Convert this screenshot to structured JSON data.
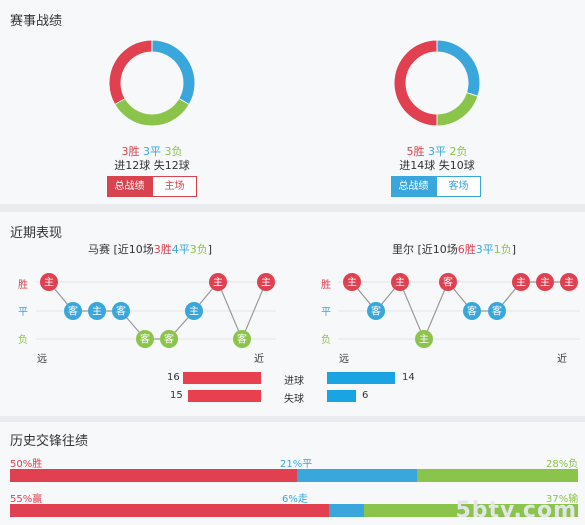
{
  "record": {
    "title": "赛事战绩",
    "left": {
      "win": "3胜",
      "draw": "3平",
      "lose": "3负",
      "goals": "进12球 失12球",
      "btn_all": "总战绩",
      "btn_venue": "主场",
      "share": {
        "win": 3,
        "draw": 3,
        "lose": 3
      }
    },
    "right": {
      "win": "5胜",
      "draw": "3平",
      "lose": "2负",
      "goals": "进14球 失10球",
      "btn_all": "总战绩",
      "btn_venue": "客场",
      "share": {
        "win": 5,
        "draw": 3,
        "lose": 2
      }
    }
  },
  "recent": {
    "title": "近期表现",
    "left": {
      "name": "马赛",
      "open": " [近10场",
      "w": "3胜",
      "d": "4平",
      "l": "3负",
      "close": "]",
      "results": [
        "W",
        "D",
        "D",
        "D",
        "L",
        "L",
        "D",
        "W",
        "L",
        "W"
      ],
      "labels": [
        "主",
        "客",
        "主",
        "客",
        "客",
        "客",
        "主",
        "主",
        "客",
        "主"
      ]
    },
    "right": {
      "name": "里尔",
      "open": " [近10场",
      "w": "6胜",
      "d": "3平",
      "l": "1负",
      "close": "]",
      "results": [
        "W",
        "D",
        "W",
        "L",
        "W",
        "D",
        "D",
        "W",
        "W",
        "W"
      ],
      "labels": [
        "主",
        "客",
        "主",
        "主",
        "客",
        "客",
        "客",
        "主",
        "主",
        "主"
      ]
    },
    "y_win": "胜",
    "y_draw": "平",
    "y_lose": "负",
    "x_far": "远",
    "x_near": "近",
    "stats": {
      "goals_label": "进球",
      "conceded_label": "失球",
      "left_goals": "16",
      "left_conceded": "15",
      "right_goals": "14",
      "right_conceded": "6",
      "left_goals_v": 16,
      "left_conceded_v": 15,
      "right_goals_v": 14,
      "right_conceded_v": 6
    }
  },
  "history": {
    "title": "历史交锋往绩",
    "row1": {
      "win": "50%胜",
      "draw": "21%平",
      "lose": "28%负",
      "w": 50,
      "d": 21,
      "l": 28
    },
    "row2": {
      "win": "55%赢",
      "draw": "6%走",
      "lose": "37%输",
      "w": 55,
      "d": 6,
      "l": 37
    }
  },
  "watermark": "5btv.com",
  "colors": {
    "win": "#e0404f",
    "draw": "#3aa7dc",
    "lose": "#8bc44b"
  }
}
